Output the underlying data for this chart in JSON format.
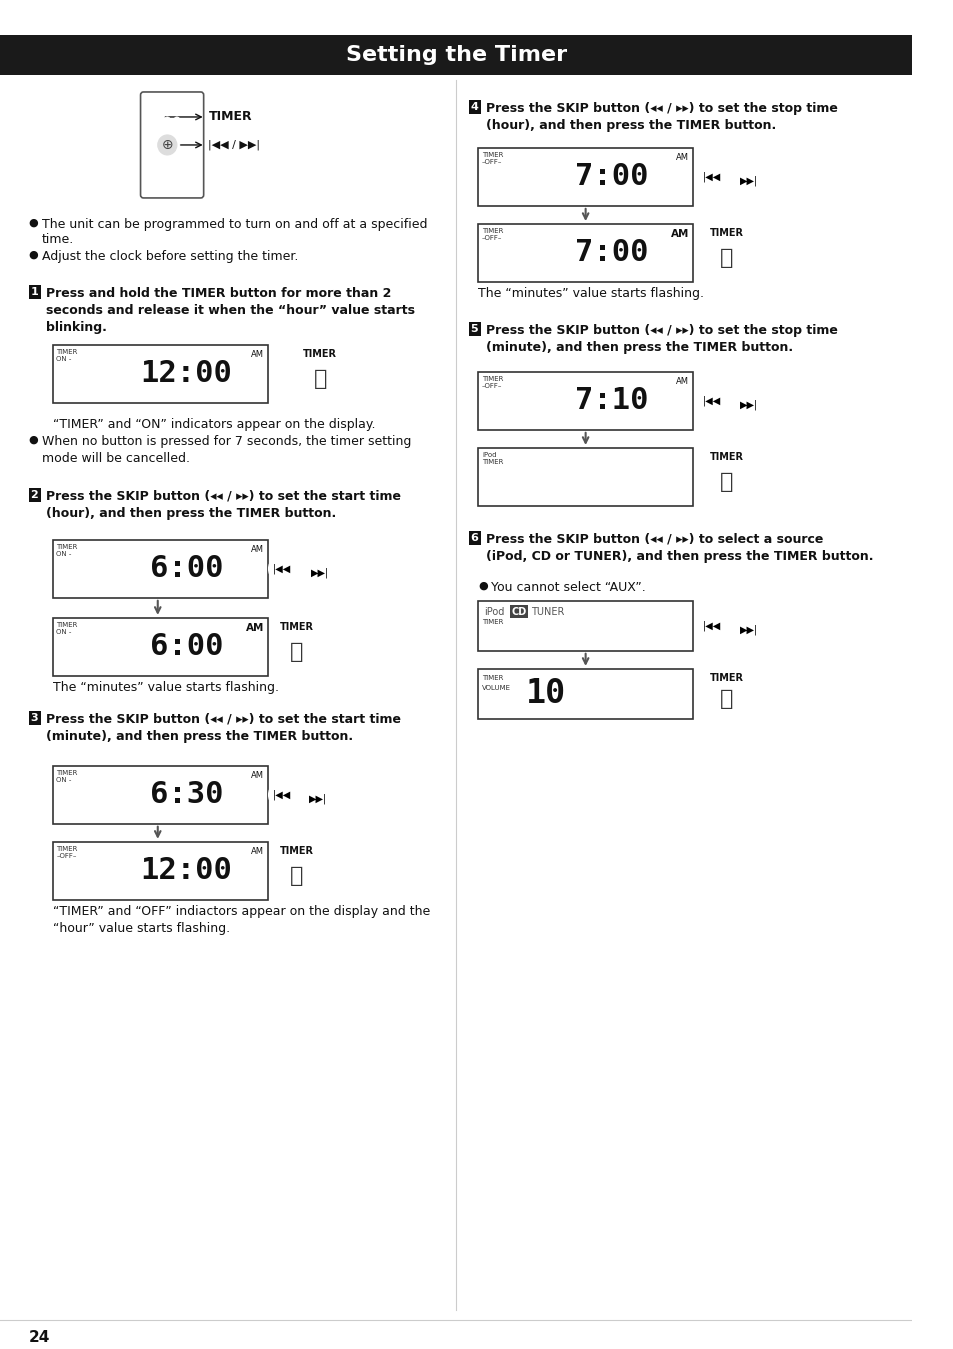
{
  "title": "Setting the Timer",
  "title_bg": "#1a1a1a",
  "title_color": "#ffffff",
  "page_bg": "#ffffff",
  "text_color": "#000000",
  "bullet1": "The unit can be programmed to turn on and off at a specified time.",
  "bullet2": "Adjust the clock before setting the timer.",
  "step1_header": "Press and hold the TIMER button for more than 2 seconds and release it when the “hour” value starts blinking.",
  "step1_note1": "“TIMER” and “ON” indicators appear on the display.",
  "step1_note2": "When no button is pressed for 7 seconds, the timer setting mode will be cancelled.",
  "step2_header": "Press the SKIP button (|<< / >>|) to set the start time (hour), and then press the TIMER button.",
  "step2_minutes": "The “minutes” value starts flashing.",
  "step3_header": "Press the SKIP button (|<< / >>|) to set the start time (minute), and then press the TIMER button.",
  "step3_note1": "“TIMER” and “OFF” indiactors appear on the display and the “hour” value starts flashing.",
  "step4_header": "Press the SKIP button (|<< / >>|) to set the stop time (hour), and then press the TIMER button.",
  "step4_minutes": "The “minutes” value starts flashing.",
  "step5_header": "Press the SKIP button (|<< / >>|) to set the stop time (minute), and then press the TIMER button.",
  "step6_header": "Press the SKIP button (|<< / >>|) to select a source (iPod, CD or TUNER), and then press the TIMER button.",
  "step6_note": "You cannot select “AUX”.",
  "page_number": "24"
}
